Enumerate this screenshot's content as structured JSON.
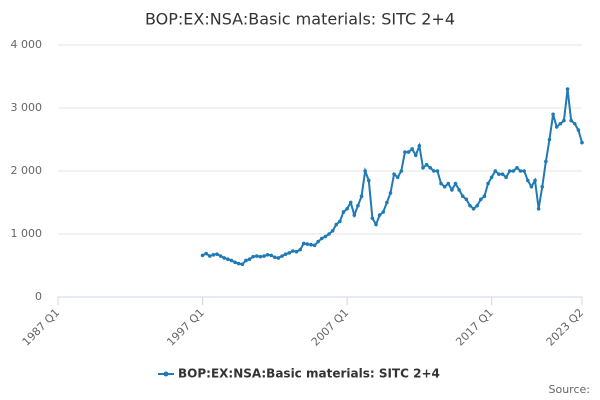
{
  "chart_data": {
    "type": "line",
    "title": "BOP:EX:NSA:Basic materials: SITC 2+4",
    "source": "Source:",
    "categories": [
      "1987 Q1",
      null,
      null,
      null,
      null,
      null,
      null,
      null,
      null,
      null,
      null,
      null,
      null,
      null,
      null,
      null,
      null,
      null,
      null,
      null,
      null,
      null,
      null,
      null,
      null,
      null,
      null,
      null,
      null,
      null,
      null,
      null,
      null,
      null,
      null,
      null,
      null,
      null,
      null,
      null,
      "1997 Q1",
      null,
      null,
      null,
      null,
      null,
      null,
      null,
      null,
      null,
      null,
      null,
      null,
      null,
      null,
      null,
      null,
      null,
      null,
      null,
      null,
      null,
      null,
      null,
      null,
      null,
      null,
      null,
      null,
      null,
      null,
      null,
      null,
      null,
      null,
      null,
      null,
      null,
      null,
      null,
      "2007 Q1",
      null,
      null,
      null,
      null,
      null,
      null,
      null,
      null,
      null,
      null,
      null,
      null,
      null,
      null,
      null,
      null,
      null,
      null,
      null,
      null,
      null,
      null,
      null,
      null,
      null,
      null,
      null,
      null,
      null,
      null,
      null,
      null,
      null,
      null,
      null,
      null,
      null,
      null,
      null,
      "2017 Q1",
      null,
      null,
      null,
      null,
      null,
      null,
      null,
      null,
      null,
      null,
      null,
      null,
      null,
      null,
      null,
      null,
      null,
      null,
      null,
      null,
      null,
      null,
      null,
      null,
      "2023 Q2"
    ],
    "series": [
      {
        "name": "BOP:EX:NSA:Basic materials: SITC 2+4",
        "color": "#1f7ab5",
        "values": [
          null,
          null,
          null,
          null,
          null,
          null,
          null,
          null,
          null,
          null,
          null,
          null,
          null,
          null,
          null,
          null,
          null,
          null,
          null,
          null,
          null,
          null,
          null,
          null,
          null,
          null,
          null,
          null,
          null,
          null,
          null,
          null,
          null,
          null,
          null,
          null,
          null,
          null,
          null,
          null,
          660,
          690,
          650,
          670,
          680,
          650,
          620,
          600,
          580,
          550,
          530,
          520,
          580,
          600,
          640,
          650,
          640,
          650,
          670,
          660,
          630,
          620,
          650,
          680,
          700,
          730,
          720,
          750,
          850,
          840,
          830,
          820,
          880,
          930,
          960,
          1000,
          1050,
          1150,
          1200,
          1350,
          1400,
          1500,
          1300,
          1450,
          1600,
          2000,
          1850,
          1250,
          1150,
          1300,
          1350,
          1500,
          1650,
          1950,
          1900,
          2000,
          2300,
          2300,
          2350,
          2250,
          2400,
          2050,
          2100,
          2050,
          2000,
          2000,
          1800,
          1750,
          1800,
          1700,
          1800,
          1700,
          1600,
          1550,
          1450,
          1400,
          1450,
          1550,
          1600,
          1800,
          1900,
          2000,
          1950,
          1950,
          1900,
          2000,
          2000,
          2050,
          2000,
          2000,
          1850,
          1750,
          1850,
          1400,
          1750,
          2150,
          2500,
          2900,
          2700,
          2750,
          2800,
          3300,
          2800,
          2750,
          2650,
          2450
        ]
      }
    ],
    "ylim": [
      0,
      4000
    ],
    "yticks": [
      0,
      {
        "value": 1000,
        "label": "1 000"
      },
      {
        "value": 2000,
        "label": "2 000"
      },
      {
        "value": 3000,
        "label": "3 000"
      },
      {
        "value": 4000,
        "label": "4 000"
      }
    ],
    "grid": true
  }
}
